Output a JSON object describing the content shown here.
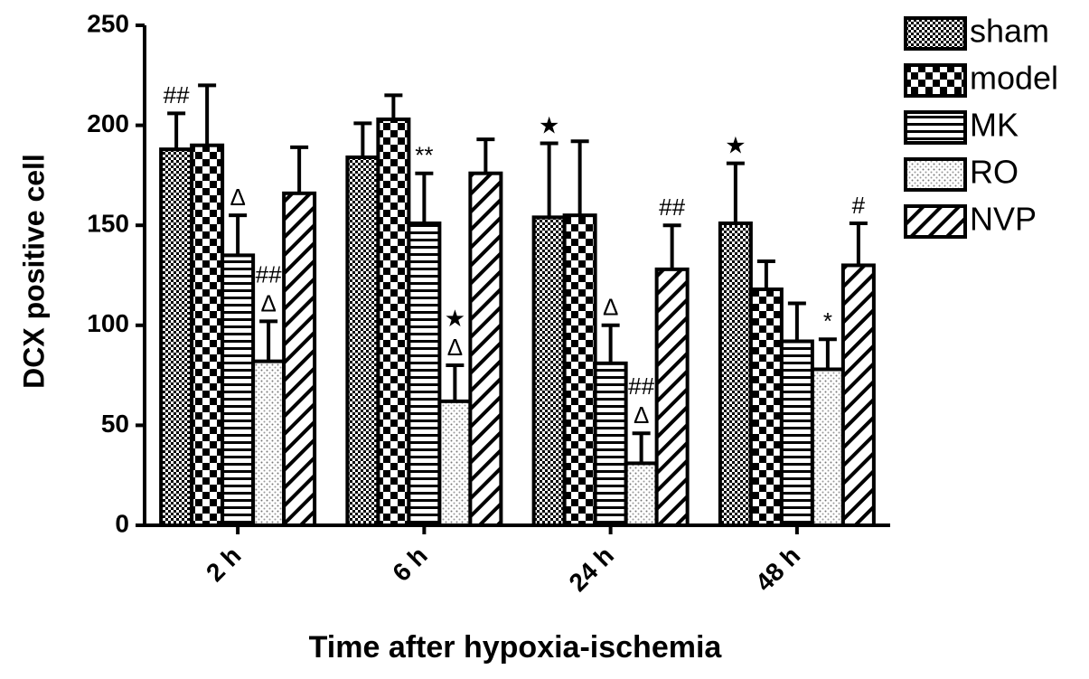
{
  "chart_data": {
    "type": "bar",
    "x_label": "Time after hypoxia-ischemia",
    "y_label": "DCX positive cell",
    "categories": [
      "2 h",
      "6 h",
      "24 h",
      "48 h"
    ],
    "ylim": [
      0,
      250
    ],
    "yticks": [
      0,
      50,
      100,
      150,
      200,
      250
    ],
    "legend": "top-right",
    "series": [
      {
        "name": "sham",
        "color": "#000000",
        "values": [
          188,
          184,
          154,
          151
        ],
        "errors": [
          18,
          17,
          37,
          30
        ],
        "annotations": [
          [
            "##"
          ],
          [],
          [
            "★"
          ],
          [
            "★"
          ]
        ]
      },
      {
        "name": "model",
        "color": "#000000",
        "values": [
          190,
          203,
          155,
          118
        ],
        "errors": [
          30,
          12,
          37,
          14
        ],
        "annotations": [
          [],
          [],
          [],
          []
        ]
      },
      {
        "name": "MK",
        "color": "#000000",
        "values": [
          135,
          151,
          81,
          92
        ],
        "errors": [
          20,
          25,
          19,
          19
        ],
        "annotations": [
          [
            "Δ"
          ],
          [
            "**"
          ],
          [
            "Δ"
          ],
          []
        ]
      },
      {
        "name": "RO",
        "color": "#000000",
        "values": [
          82,
          62,
          31,
          78
        ],
        "errors": [
          20,
          18,
          15,
          15
        ],
        "annotations": [
          [
            "##",
            "Δ"
          ],
          [
            "★",
            "Δ"
          ],
          [
            "##",
            "Δ"
          ],
          [
            "*"
          ]
        ]
      },
      {
        "name": "NVP",
        "color": "#000000",
        "values": [
          166,
          176,
          128,
          130
        ],
        "errors": [
          23,
          17,
          22,
          21
        ],
        "annotations": [
          [],
          [],
          [
            "##"
          ],
          [
            "#"
          ]
        ]
      }
    ]
  }
}
